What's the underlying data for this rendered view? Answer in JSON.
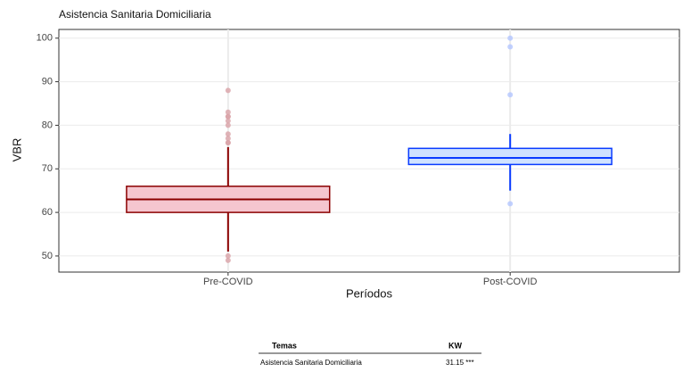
{
  "chart_data": {
    "type": "box",
    "title": "Asistencia Sanitaria Domiciliaria",
    "y_label": "VBR",
    "x_label": "Períodos",
    "categories": [
      "Pre-COVID",
      "Post-COVID"
    ],
    "boxes": [
      {
        "whisker_low": 51,
        "q1": 60,
        "median": 63,
        "q3": 66,
        "whisker_high": 75,
        "outliers": [
          88,
          83,
          82,
          82,
          81,
          80,
          78,
          77,
          76,
          76,
          50,
          49
        ],
        "color": "#8b0000",
        "fill": "#f5c6cf",
        "outlier_color": "#d9a3a8"
      },
      {
        "whisker_low": 65,
        "q1": 71,
        "median": 72.5,
        "q3": 74.7,
        "whisker_high": 78,
        "outliers": [
          100,
          98,
          87,
          62
        ],
        "color": "#0a3cff",
        "fill": "#cfe2ff",
        "outlier_color": "#b3c6ff"
      }
    ],
    "ylim": [
      46.3,
      102
    ],
    "yticks": [
      50,
      60,
      70,
      80,
      90,
      100
    ],
    "grid": true
  },
  "table": {
    "headers": [
      "Temas",
      "KW"
    ],
    "rows": [
      [
        "Asistencia Sanitaria Domiciliaria",
        "31.15 ***"
      ]
    ]
  }
}
